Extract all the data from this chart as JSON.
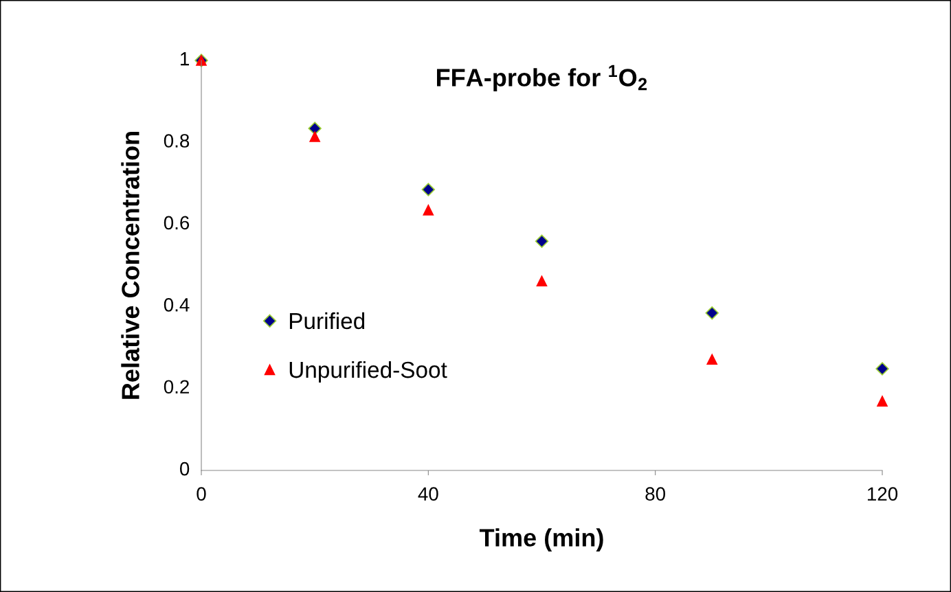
{
  "chart_data": {
    "type": "scatter",
    "title": "FFA-probe for $^{1}$O$_{2}$",
    "xlabel": "Time (min)",
    "ylabel": "Relative Concentration",
    "x": [
      0,
      20,
      40,
      60,
      90,
      120
    ],
    "series": [
      {
        "name": "Purified",
        "color": "#00008b",
        "marker": "diamond",
        "values": [
          1.0,
          0.834,
          0.685,
          0.559,
          0.384,
          0.248
        ]
      },
      {
        "name": "Unpurified-Soot",
        "color": "#ff0000",
        "marker": "triangle",
        "values": [
          1.0,
          0.814,
          0.635,
          0.462,
          0.271,
          0.169
        ]
      }
    ],
    "xlim": [
      0,
      120
    ],
    "xticks": [
      0,
      40,
      80,
      120
    ],
    "ylim": [
      0,
      1
    ],
    "yticks": [
      0,
      0.2,
      0.4,
      0.6,
      0.8,
      1
    ],
    "grid": false,
    "legend": "left"
  }
}
